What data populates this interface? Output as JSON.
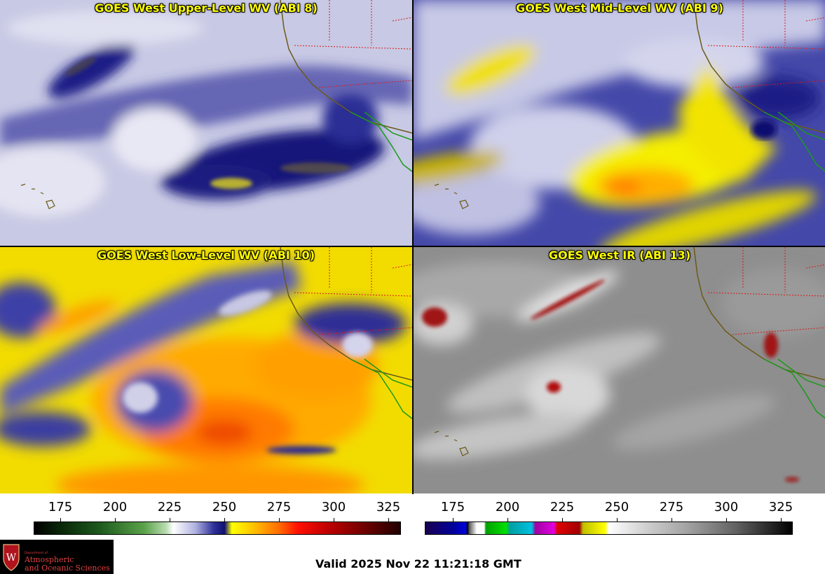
{
  "panels": [
    {
      "id": "upper",
      "title": "GOES West Upper-Level WV (ABI 8)"
    },
    {
      "id": "mid",
      "title": "GOES West Mid-Level WV (ABI 9)"
    },
    {
      "id": "low",
      "title": "GOES West Low-Level WV (ABI 10)"
    },
    {
      "id": "ir",
      "title": "GOES West IR (ABI 13)"
    }
  ],
  "colorbars": {
    "wv": {
      "ticks": [
        "175",
        "200",
        "225",
        "250",
        "275",
        "300",
        "325"
      ]
    },
    "ir": {
      "ticks": [
        "175",
        "200",
        "225",
        "250",
        "275",
        "300",
        "325"
      ]
    }
  },
  "logo": {
    "line_small": "Department of",
    "line_1": "Atmospheric",
    "line_2": "and Oceanic Sciences"
  },
  "valid_time": "Valid 2025 Nov 22 11:21:18 GMT",
  "colors": {
    "wv_background": "#c9cae6",
    "wv_dark": "#14157a",
    "wv_yellow": "#f2f200",
    "wv_orange": "#ff8a00",
    "wv_red": "#e03000",
    "ir_background": "#8a8a8a",
    "title_yellow": "#ffff00",
    "coastline": "#6b5a18",
    "state_border": "#d81a1a",
    "mexico_border": "#1a9a1a"
  }
}
